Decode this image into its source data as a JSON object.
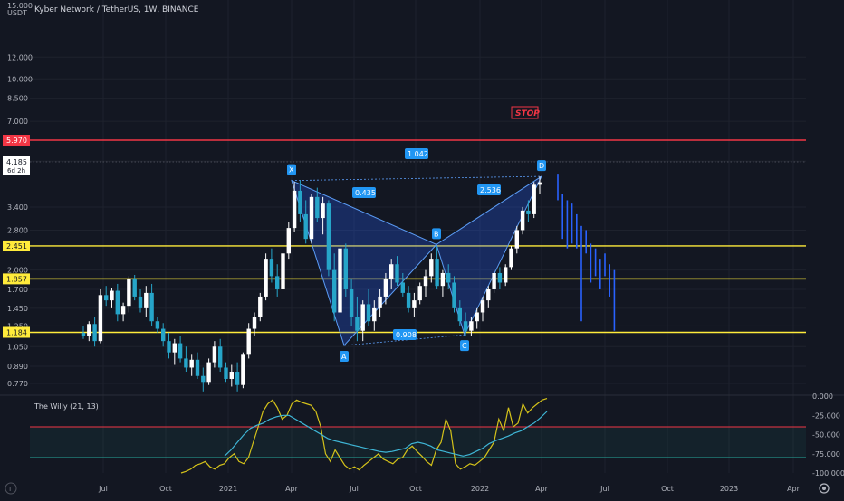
{
  "header": {
    "title": "Kyber Network / TetherUS, 1W, BINANCE",
    "currency": "USDT"
  },
  "price_axis": {
    "ticks": [
      "12.000",
      "10.000",
      "8.500",
      "7.000",
      "5.000",
      "3.400",
      "2.800",
      "2.000",
      "1.700",
      "1.450",
      "1.250",
      "1.050",
      "0.890",
      "0.770"
    ],
    "ticks_top": [
      "15.000"
    ],
    "current_price": "4.185",
    "countdown": "6d 2h"
  },
  "levels": [
    {
      "name": "stop",
      "value": 5.97,
      "label": "5.970",
      "color": "#f23645"
    },
    {
      "name": "level-2451",
      "value": 2.451,
      "label": "2.451",
      "color": "#ffeb3b"
    },
    {
      "name": "level-1857",
      "value": 1.857,
      "label": "1.857",
      "color": "#ffeb3b"
    },
    {
      "name": "level-1184",
      "value": 1.184,
      "label": "1.184",
      "color": "#ffeb3b"
    }
  ],
  "stop_text": "STOP",
  "time_axis": {
    "labels": [
      "Jul",
      "Oct",
      "2021",
      "Apr",
      "Jul",
      "Oct",
      "2022",
      "Apr",
      "Jul",
      "Oct",
      "2023",
      "Apr"
    ]
  },
  "pattern": {
    "points": [
      {
        "label": "X",
        "price": 4.25
      },
      {
        "label": "A",
        "price": 1.06
      },
      {
        "label": "B",
        "price": 2.48
      },
      {
        "label": "C",
        "price": 1.16
      },
      {
        "label": "D",
        "price": 4.4
      }
    ],
    "ratios": [
      "1.042",
      "0.435",
      "2.536",
      "0.908"
    ]
  },
  "indicator": {
    "name": "The Willy (21, 13)",
    "ticks": [
      "0.000",
      "-25.000",
      "-50.000",
      "-75.000",
      "-100.000"
    ]
  },
  "chart_data": [
    {
      "type": "candlestick",
      "title": "Kyber Network / TetherUS, 1W, BINANCE",
      "y_scale": "log",
      "ylim": [
        0.7,
        15.0
      ],
      "candles": [
        [
          1.18,
          1.25,
          1.12,
          1.15
        ],
        [
          1.15,
          1.3,
          1.1,
          1.27
        ],
        [
          1.27,
          1.35,
          1.05,
          1.1
        ],
        [
          1.1,
          1.7,
          1.08,
          1.62
        ],
        [
          1.62,
          1.75,
          1.48,
          1.55
        ],
        [
          1.55,
          1.72,
          1.45,
          1.68
        ],
        [
          1.68,
          1.78,
          1.3,
          1.38
        ],
        [
          1.38,
          1.52,
          1.3,
          1.48
        ],
        [
          1.48,
          1.9,
          1.4,
          1.85
        ],
        [
          1.85,
          1.92,
          1.55,
          1.6
        ],
        [
          1.6,
          1.7,
          1.4,
          1.45
        ],
        [
          1.45,
          1.75,
          1.35,
          1.65
        ],
        [
          1.65,
          1.78,
          1.25,
          1.3
        ],
        [
          1.3,
          1.35,
          1.18,
          1.22
        ],
        [
          1.22,
          1.28,
          1.05,
          1.1
        ],
        [
          1.1,
          1.18,
          0.95,
          1.0
        ],
        [
          1.0,
          1.12,
          0.9,
          1.08
        ],
        [
          1.08,
          1.15,
          0.92,
          0.95
        ],
        [
          0.95,
          1.05,
          0.85,
          0.88
        ],
        [
          0.88,
          0.98,
          0.82,
          0.94
        ],
        [
          0.94,
          1.0,
          0.8,
          0.82
        ],
        [
          0.82,
          0.88,
          0.72,
          0.78
        ],
        [
          0.78,
          0.95,
          0.76,
          0.92
        ],
        [
          0.92,
          1.1,
          0.88,
          1.05
        ],
        [
          1.05,
          1.12,
          0.85,
          0.88
        ],
        [
          0.88,
          0.92,
          0.78,
          0.8
        ],
        [
          0.8,
          0.9,
          0.75,
          0.85
        ],
        [
          0.85,
          0.92,
          0.72,
          0.76
        ],
        [
          0.76,
          1.0,
          0.74,
          0.98
        ],
        [
          0.98,
          1.28,
          0.95,
          1.22
        ],
        [
          1.22,
          1.4,
          1.15,
          1.35
        ],
        [
          1.35,
          1.65,
          1.3,
          1.6
        ],
        [
          1.6,
          2.3,
          1.55,
          2.2
        ],
        [
          2.2,
          2.4,
          1.8,
          1.9
        ],
        [
          1.9,
          2.1,
          1.6,
          1.7
        ],
        [
          1.7,
          2.4,
          1.65,
          2.3
        ],
        [
          2.3,
          3.0,
          2.2,
          2.85
        ],
        [
          2.85,
          4.2,
          2.75,
          3.9
        ],
        [
          3.9,
          4.25,
          3.0,
          3.2
        ],
        [
          3.2,
          3.6,
          2.5,
          2.6
        ],
        [
          2.6,
          3.8,
          2.5,
          3.7
        ],
        [
          3.7,
          4.0,
          3.0,
          3.1
        ],
        [
          3.1,
          3.7,
          2.7,
          3.5
        ],
        [
          3.5,
          3.6,
          1.9,
          2.0
        ],
        [
          2.0,
          2.3,
          1.3,
          1.4
        ],
        [
          1.4,
          2.5,
          1.35,
          2.4
        ],
        [
          2.4,
          2.5,
          1.6,
          1.7
        ],
        [
          1.7,
          1.85,
          1.25,
          1.35
        ],
        [
          1.35,
          1.6,
          1.1,
          1.2
        ],
        [
          1.2,
          1.55,
          1.1,
          1.5
        ],
        [
          1.5,
          1.7,
          1.25,
          1.3
        ],
        [
          1.3,
          1.55,
          1.2,
          1.45
        ],
        [
          1.45,
          1.7,
          1.35,
          1.6
        ],
        [
          1.6,
          1.95,
          1.5,
          1.85
        ],
        [
          1.85,
          2.2,
          1.7,
          2.1
        ],
        [
          2.1,
          2.25,
          1.75,
          1.8
        ],
        [
          1.8,
          1.95,
          1.6,
          1.65
        ],
        [
          1.65,
          1.75,
          1.4,
          1.45
        ],
        [
          1.45,
          1.65,
          1.35,
          1.55
        ],
        [
          1.55,
          1.8,
          1.5,
          1.75
        ],
        [
          1.75,
          2.0,
          1.6,
          1.9
        ],
        [
          1.9,
          2.3,
          1.8,
          2.2
        ],
        [
          2.2,
          2.45,
          1.7,
          1.75
        ],
        [
          1.75,
          2.0,
          1.6,
          1.95
        ],
        [
          1.95,
          2.1,
          1.7,
          1.8
        ],
        [
          1.8,
          1.9,
          1.4,
          1.45
        ],
        [
          1.45,
          1.55,
          1.25,
          1.3
        ],
        [
          1.3,
          1.4,
          1.15,
          1.2
        ],
        [
          1.2,
          1.35,
          1.15,
          1.3
        ],
        [
          1.3,
          1.45,
          1.22,
          1.4
        ],
        [
          1.4,
          1.6,
          1.3,
          1.55
        ],
        [
          1.55,
          1.75,
          1.45,
          1.7
        ],
        [
          1.7,
          2.0,
          1.65,
          1.95
        ],
        [
          1.95,
          2.05,
          1.7,
          1.8
        ],
        [
          1.8,
          2.1,
          1.75,
          2.05
        ],
        [
          2.05,
          2.45,
          2.0,
          2.4
        ],
        [
          2.4,
          2.9,
          2.3,
          2.8
        ],
        [
          2.8,
          3.4,
          2.7,
          3.3
        ],
        [
          3.3,
          3.6,
          3.0,
          3.2
        ],
        [
          3.2,
          4.2,
          3.1,
          4.1
        ],
        [
          4.1,
          4.4,
          3.8,
          4.185
        ]
      ],
      "projection_bars": [
        [
          3.6,
          4.5
        ],
        [
          2.6,
          3.8
        ],
        [
          2.4,
          3.6
        ],
        [
          2.5,
          3.5
        ],
        [
          2.4,
          3.2
        ],
        [
          1.3,
          2.9
        ],
        [
          2.3,
          2.8
        ],
        [
          1.8,
          2.5
        ],
        [
          1.9,
          2.4
        ],
        [
          1.7,
          2.2
        ],
        [
          1.9,
          2.3
        ],
        [
          1.6,
          2.1
        ],
        [
          1.2,
          2.0
        ]
      ],
      "xlabel": "",
      "ylabel": ""
    },
    {
      "type": "line",
      "title": "The Willy (21, 13)",
      "ylim": [
        -100,
        0
      ],
      "bands": [
        -40,
        -80
      ],
      "series": [
        {
          "values": [
            -100,
            -98,
            -95,
            -90,
            -88,
            -85,
            -92,
            -95,
            -90,
            -88,
            -80,
            -75,
            -85,
            -88,
            -80,
            -60,
            -40,
            -20,
            -10,
            -5,
            -15,
            -30,
            -25,
            -10,
            -5,
            -8,
            -10,
            -12,
            -20,
            -40,
            -75,
            -85,
            -70,
            -80,
            -90,
            -95,
            -92,
            -96,
            -90,
            -85,
            -80,
            -75,
            -82,
            -85,
            -88,
            -82,
            -80,
            -70,
            -65,
            -72,
            -78,
            -85,
            -90,
            -70,
            -60,
            -30,
            -45,
            -88,
            -95,
            -92,
            -88,
            -90,
            -85,
            -80,
            -70,
            -60,
            -30,
            -45,
            -15,
            -40,
            -35,
            -10,
            -22,
            -15,
            -10,
            -5,
            -3
          ]
        },
        {
          "values": [
            -78,
            -70,
            -60,
            -50,
            -42,
            -38,
            -35,
            -30,
            -27,
            -25,
            -25,
            -30,
            -35,
            -40,
            -45,
            -50,
            -55,
            -58,
            -60,
            -62,
            -64,
            -66,
            -68,
            -70,
            -72,
            -73,
            -72,
            -70,
            -68,
            -62,
            -60,
            -62,
            -65,
            -70,
            -72,
            -74,
            -76,
            -78,
            -76,
            -72,
            -68,
            -62,
            -58,
            -55,
            -52,
            -48,
            -45,
            -40,
            -35,
            -28,
            -20
          ]
        }
      ]
    }
  ]
}
